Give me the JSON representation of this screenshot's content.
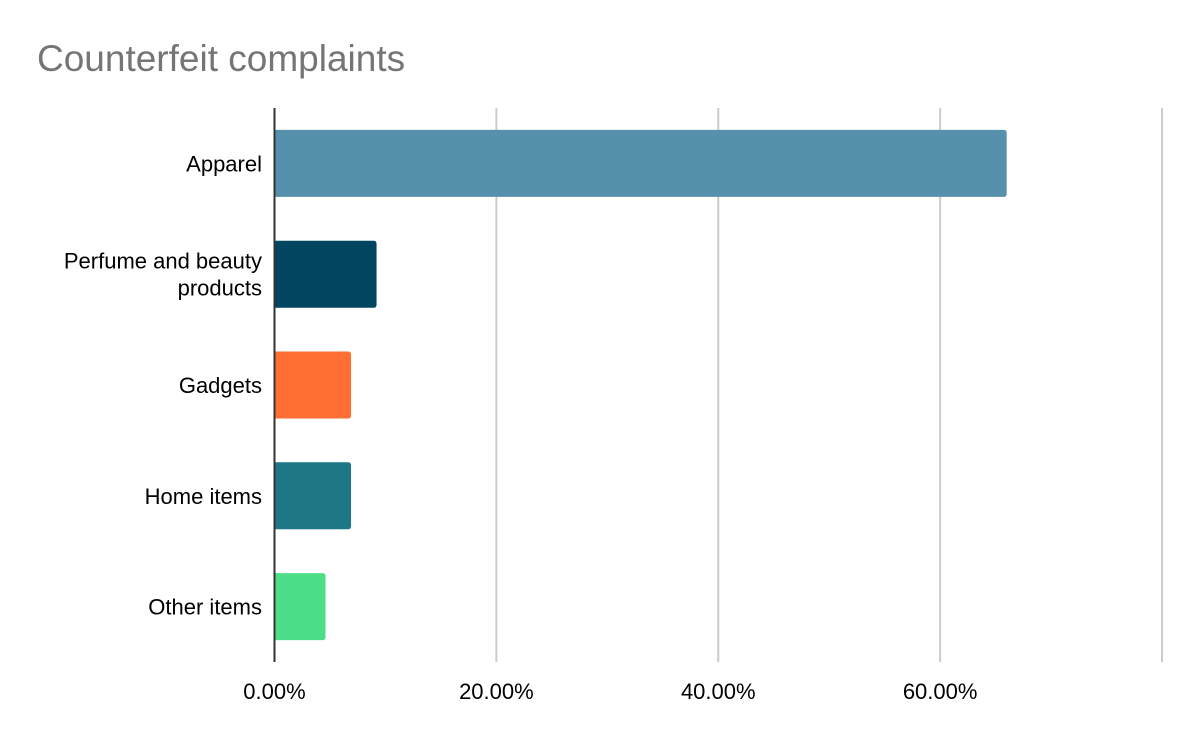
{
  "chart_data": {
    "type": "bar",
    "orientation": "horizontal",
    "title": "Counterfeit complaints",
    "xlabel": "",
    "ylabel": "",
    "xlim": [
      0,
      80
    ],
    "grid": true,
    "categories": [
      "Apparel",
      "Perfume and beauty products",
      "Gadgets",
      "Home items",
      "Other items"
    ],
    "category_lines": [
      [
        "Apparel"
      ],
      [
        "Perfume and beauty",
        "products"
      ],
      [
        "Gadgets"
      ],
      [
        "Home items"
      ],
      [
        "Other items"
      ]
    ],
    "values": [
      66.0,
      9.2,
      6.9,
      6.9,
      4.6
    ],
    "colors": [
      "#5790ad",
      "#014560",
      "#ff6f33",
      "#1d7784",
      "#4cdd89"
    ],
    "x_ticks": [
      {
        "value": 0,
        "label": "0.00%"
      },
      {
        "value": 20,
        "label": "20.00%"
      },
      {
        "value": 40,
        "label": "40.00%"
      },
      {
        "value": 60,
        "label": "60.00%"
      },
      {
        "value": 80,
        "label": ""
      }
    ]
  }
}
